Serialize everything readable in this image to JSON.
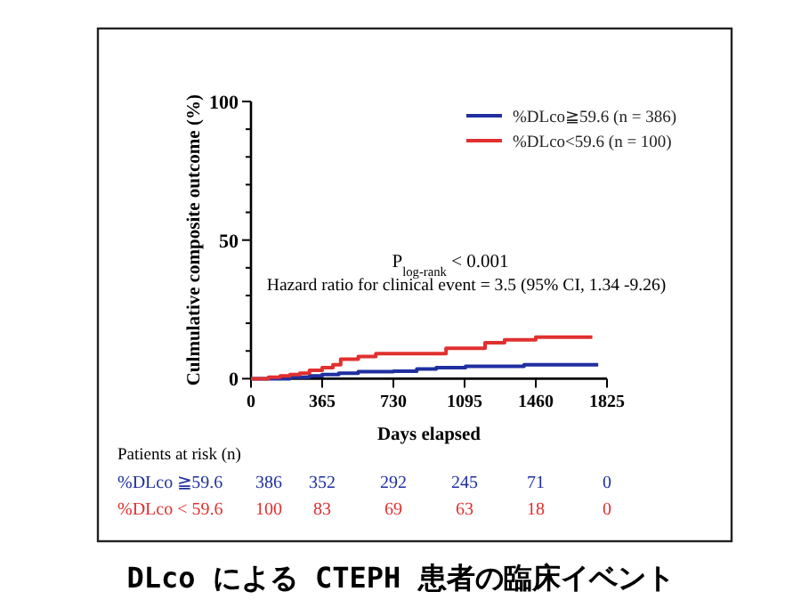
{
  "chart_data": {
    "type": "step",
    "xlabel": "Days elapsed",
    "ylabel": "Culmulative composite outcome (%)",
    "xlim": [
      0,
      1825
    ],
    "xticks": [
      0,
      365,
      730,
      1095,
      1460,
      1825
    ],
    "ylim": [
      0,
      100
    ],
    "yticks": [
      0,
      {
        "value": 10,
        "label": null
      },
      {
        "value": 20,
        "label": null
      },
      {
        "value": 30,
        "label": null
      },
      {
        "value": 40,
        "label": null
      },
      50,
      {
        "value": 60,
        "label": null
      },
      {
        "value": 70,
        "label": null
      },
      {
        "value": 80,
        "label": null
      },
      {
        "value": 90,
        "label": null
      },
      100
    ],
    "legend": "top right",
    "grid": false,
    "series": [
      {
        "name": "%DLco≧59.6 (n = 386)",
        "color": "#1f2fa0",
        "x": [
          0,
          200,
          300,
          365,
          450,
          550,
          730,
          850,
          950,
          1100,
          1250,
          1400,
          1780
        ],
        "values": [
          0,
          0.5,
          1,
          1.5,
          2,
          2.5,
          2.7,
          3.5,
          4,
          4.5,
          4.5,
          5,
          5
        ]
      },
      {
        "name": "%DLco<59.6 (n = 100)",
        "color": "#e0302f",
        "x": [
          0,
          90,
          150,
          200,
          250,
          300,
          365,
          420,
          460,
          550,
          640,
          900,
          1000,
          1100,
          1200,
          1300,
          1460,
          1750
        ],
        "values": [
          0,
          0.5,
          1,
          1.5,
          2,
          3,
          4,
          5,
          7,
          8,
          9,
          9,
          11,
          11,
          13,
          14,
          15,
          15
        ]
      }
    ],
    "annotations": [
      "P$_{log-rank}$ < 0.001",
      "Hazard ratio for clinical event = 3.5 (95% CI, 1.34 -9.26)",
      "Patients at risk (n)",
      "%DLco ≧59.6",
      "386",
      "352",
      "292",
      "245",
      "71",
      "0",
      "%DLco <  59.6",
      "100",
      "83",
      "69",
      "63",
      "18",
      "0",
      "DLco による CTEPH 患者の臨床イベント"
    ]
  }
}
